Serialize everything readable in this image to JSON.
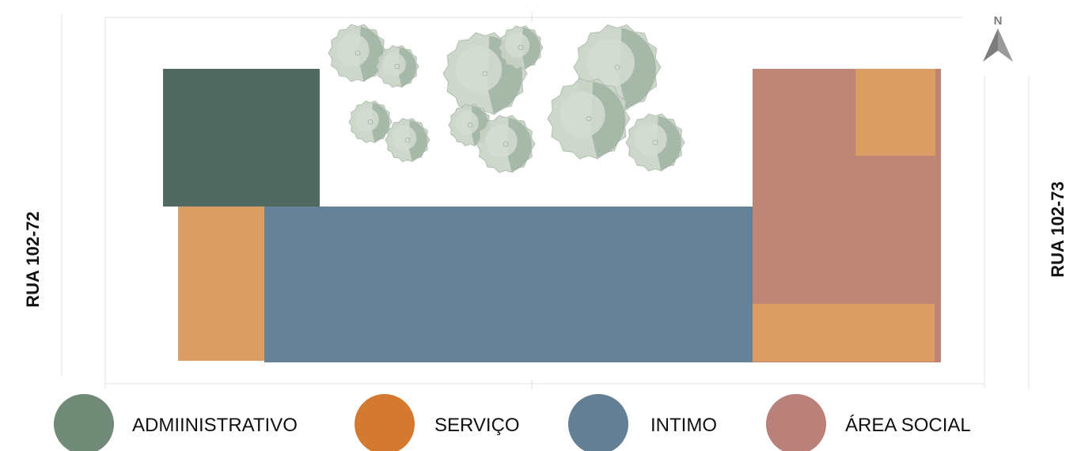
{
  "streets": {
    "left": "RUA 102-72",
    "right": "RUA 102-73"
  },
  "north_arrow": {
    "label": "N"
  },
  "zones": {
    "administrativo": {
      "color": "#506a61"
    },
    "servico": {
      "color": "#da9e64"
    },
    "intimo": {
      "color": "#678296"
    },
    "area_social": {
      "color": "#be8577"
    }
  },
  "legend": {
    "items": [
      {
        "label": "ADMIINISTRATIVO",
        "color": "#718a78"
      },
      {
        "label": "SERVIÇO",
        "color": "#d47a30"
      },
      {
        "label": "INTIMO",
        "color": "#637f94"
      },
      {
        "label": "ÁREA SOCIAL",
        "color": "#ba807a"
      }
    ]
  },
  "icons": {
    "trees": "tree-icon",
    "north": "north-arrow-icon"
  }
}
